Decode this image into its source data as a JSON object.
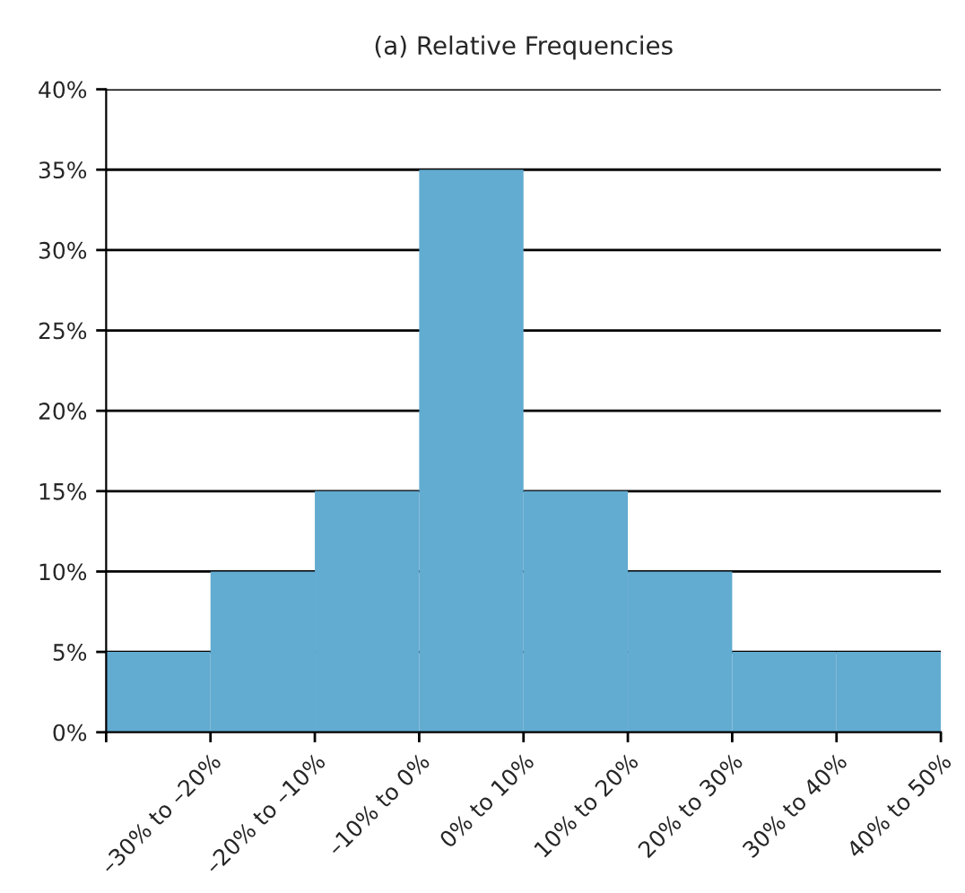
{
  "chart_data": {
    "type": "bar",
    "title": "(a) Relative Frequencies",
    "categories": [
      "–30% to –20%",
      "–20% to –10%",
      "–10% to 0%",
      "0% to 10%",
      "10% to 20%",
      "20% to 30%",
      "30% to 40%",
      "40% to 50%"
    ],
    "values": [
      5,
      10,
      15,
      35,
      15,
      10,
      5,
      5
    ],
    "color": "#62abd1",
    "ylim": [
      0,
      40
    ],
    "yticks": [
      {
        "value": 0,
        "label": "0%"
      },
      {
        "value": 5,
        "label": "5%"
      },
      {
        "value": 10,
        "label": "10%"
      },
      {
        "value": 15,
        "label": "15%"
      },
      {
        "value": 20,
        "label": "20%"
      },
      {
        "value": 25,
        "label": "25%"
      },
      {
        "value": 30,
        "label": "30%"
      },
      {
        "value": 35,
        "label": "35%"
      },
      {
        "value": 40,
        "label": "40%"
      }
    ],
    "grid": "y",
    "legend": false
  }
}
